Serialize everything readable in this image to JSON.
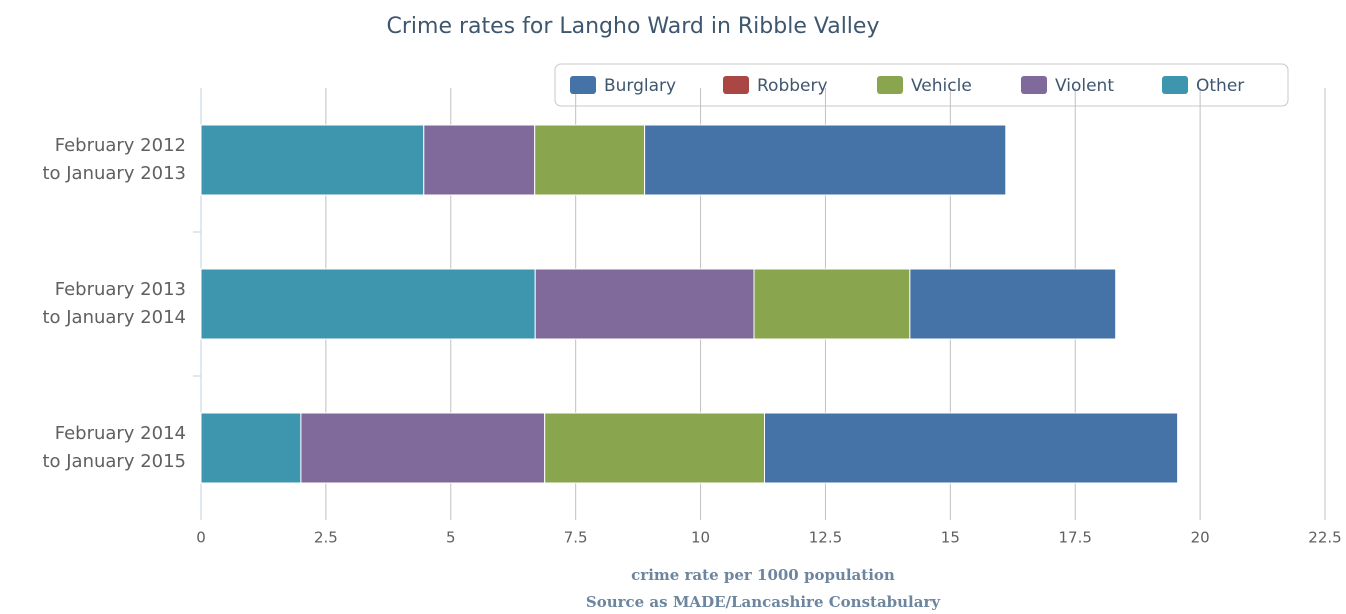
{
  "chart_data": {
    "type": "stacked-barh",
    "title": "Crime rates for Langho Ward in Ribble Valley",
    "xlabel": "crime rate per 1000 population",
    "source": "Source as MADE/Lancashire Constabulary",
    "categories": [
      [
        "February 2012",
        "to January 2013"
      ],
      [
        "February 2013",
        "to January 2014"
      ],
      [
        "February 2014",
        "to January 2015"
      ]
    ],
    "series": [
      {
        "name": "Burglary",
        "color": "#4572A7",
        "values": [
          7.23,
          4.12,
          8.27
        ]
      },
      {
        "name": "Robbery",
        "color": "#AA4643",
        "values": [
          0,
          0,
          0
        ]
      },
      {
        "name": "Vehicle",
        "color": "#89A54E",
        "values": [
          2.2,
          3.12,
          4.4
        ]
      },
      {
        "name": "Violent",
        "color": "#80699B",
        "values": [
          2.22,
          4.38,
          4.88
        ]
      },
      {
        "name": "Other",
        "color": "#3D96AE",
        "values": [
          4.46,
          6.69,
          2.0
        ]
      }
    ],
    "xlim": [
      0,
      22.5
    ],
    "xticks": [
      0,
      2.5,
      5,
      7.5,
      10,
      12.5,
      15,
      17.5,
      20,
      22.5
    ],
    "grid": true,
    "legend": "top-right"
  }
}
